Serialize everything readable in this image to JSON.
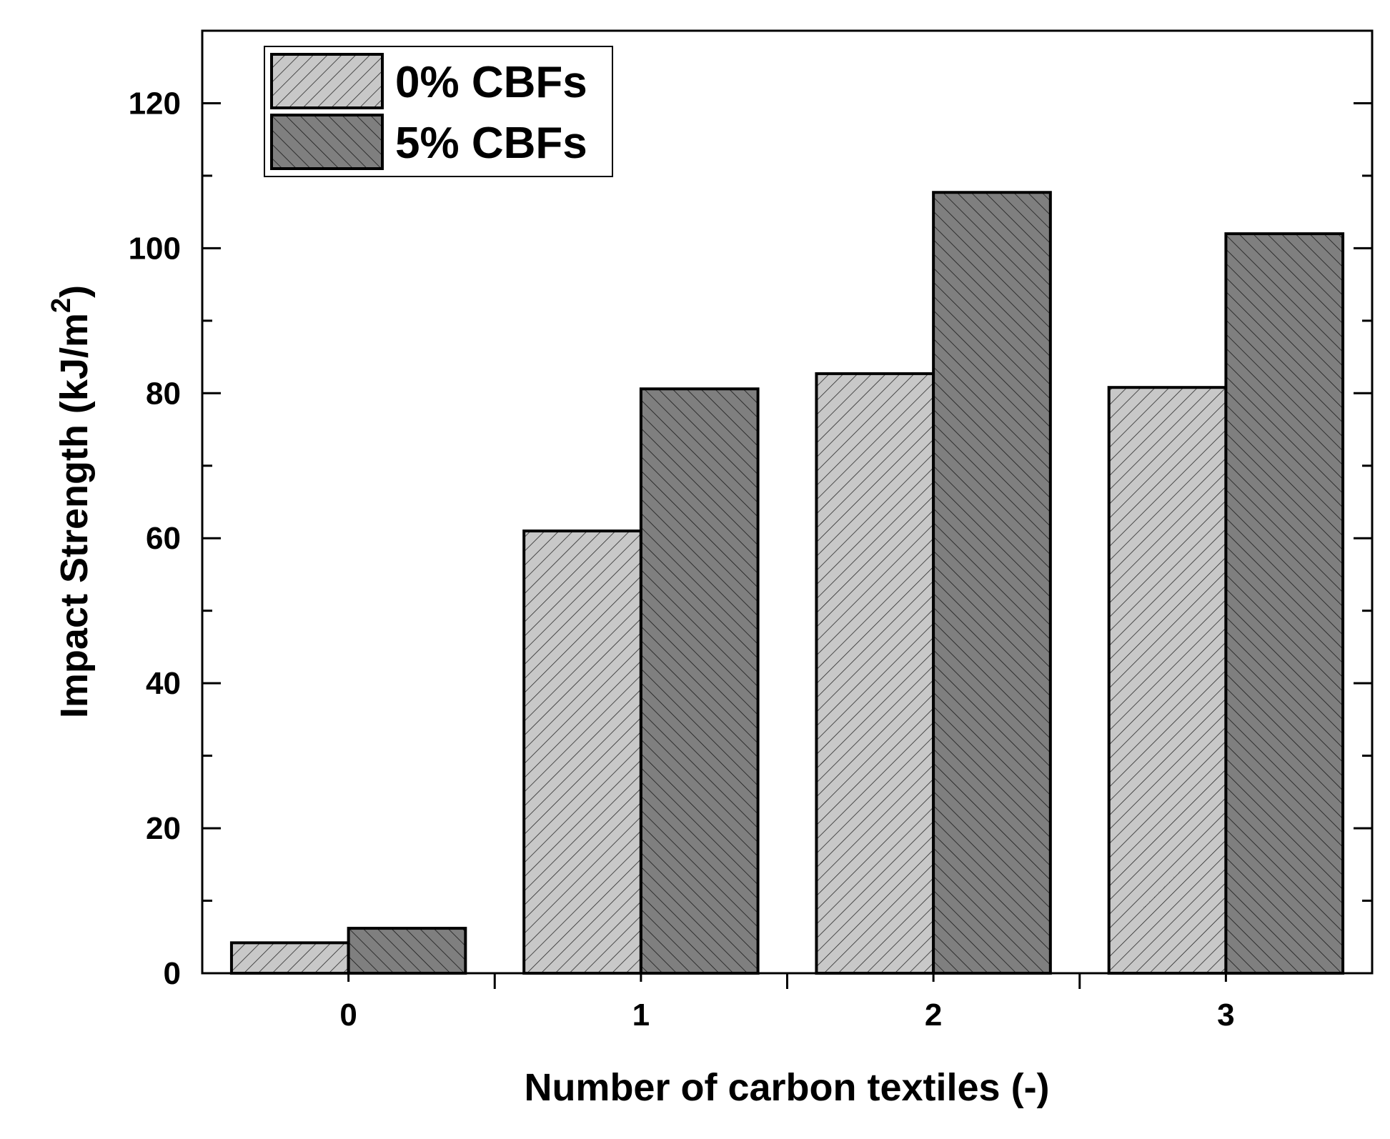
{
  "chart_data": {
    "type": "bar",
    "categories": [
      "0",
      "1",
      "2",
      "3"
    ],
    "series": [
      {
        "name": "0% CBFs",
        "values": [
          4.2,
          61,
          82.7,
          80.8
        ],
        "fill": "#c8c8c8",
        "hatch": "forward"
      },
      {
        "name": "5% CBFs",
        "values": [
          6.2,
          80.6,
          107.7,
          102
        ],
        "fill": "#7f7f7f",
        "hatch": "backward"
      }
    ],
    "xlabel": "Number of carbon textiles (-)",
    "ylabel": {
      "main": "Impact Strength (kJ/m",
      "sup": "2",
      "close": ")"
    },
    "ylim": [
      0,
      130
    ],
    "yticks": [
      0,
      20,
      40,
      60,
      80,
      100,
      120
    ],
    "grid": false,
    "legend": "top-left"
  }
}
